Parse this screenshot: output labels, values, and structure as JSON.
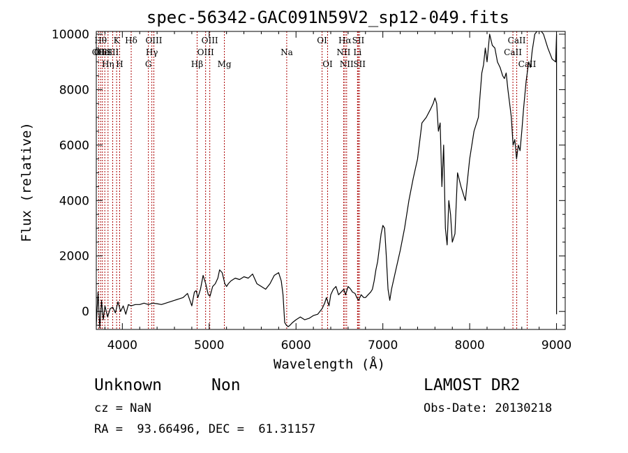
{
  "chart_data": {
    "type": "line",
    "title": "spec-56342-GAC091N59V2_sp12-049.fits",
    "xlabel": "Wavelength (Å)",
    "ylabel": "Flux (relative)",
    "xlim": [
      3700,
      9100
    ],
    "ylim": [
      -650,
      10100
    ],
    "x_ticks": [
      4000,
      5000,
      6000,
      7000,
      8000,
      9000
    ],
    "y_ticks": [
      0,
      2000,
      4000,
      6000,
      8000,
      10000
    ],
    "x_tick_labels": [
      "4000",
      "5000",
      "6000",
      "7000",
      "8000",
      "9000"
    ],
    "y_tick_labels": [
      "0",
      "2000",
      "4000",
      "6000",
      "8000",
      "10000"
    ],
    "grid": false,
    "series": [
      {
        "color": "#000000",
        "x": [
          3700,
          3720,
          3740,
          3760,
          3780,
          3800,
          3830,
          3860,
          3890,
          3920,
          3950,
          3980,
          4010,
          4040,
          4070,
          4100,
          4150,
          4200,
          4250,
          4300,
          4350,
          4400,
          4450,
          4500,
          4550,
          4600,
          4650,
          4700,
          4750,
          4800,
          4830,
          4850,
          4870,
          4900,
          4930,
          4960,
          4990,
          5010,
          5040,
          5070,
          5100,
          5120,
          5150,
          5180,
          5200,
          5220,
          5250,
          5300,
          5350,
          5400,
          5450,
          5500,
          5550,
          5600,
          5650,
          5700,
          5750,
          5800,
          5830,
          5850,
          5870,
          5890,
          5910,
          5930,
          5960,
          6000,
          6050,
          6100,
          6150,
          6200,
          6250,
          6300,
          6330,
          6350,
          6380,
          6400,
          6430,
          6460,
          6490,
          6520,
          6550,
          6570,
          6600,
          6630,
          6650,
          6680,
          6700,
          6720,
          6750,
          6780,
          6800,
          6830,
          6860,
          6880,
          6900,
          6920,
          6940,
          6960,
          6980,
          7000,
          7020,
          7040,
          7060,
          7080,
          7100,
          7150,
          7200,
          7250,
          7300,
          7350,
          7400,
          7450,
          7500,
          7550,
          7580,
          7600,
          7620,
          7640,
          7660,
          7680,
          7700,
          7720,
          7740,
          7760,
          7780,
          7800,
          7830,
          7860,
          7900,
          7950,
          8000,
          8050,
          8100,
          8120,
          8140,
          8160,
          8180,
          8200,
          8230,
          8260,
          8290,
          8320,
          8350,
          8380,
          8400,
          8420,
          8440,
          8460,
          8480,
          8500,
          8520,
          8540,
          8560,
          8580,
          8600,
          8620,
          8650,
          8680,
          8700,
          8720,
          8750,
          8800,
          8850,
          8900,
          8950,
          8990,
          9000,
          9000
        ],
        "y": [
          -500,
          700,
          -600,
          400,
          -300,
          200,
          -200,
          100,
          150,
          -50,
          350,
          0,
          200,
          -100,
          250,
          200,
          250,
          250,
          300,
          250,
          300,
          280,
          250,
          300,
          350,
          400,
          450,
          500,
          650,
          200,
          700,
          750,
          500,
          800,
          1300,
          1000,
          600,
          550,
          900,
          1000,
          1200,
          1500,
          1400,
          1000,
          900,
          1000,
          1100,
          1200,
          1150,
          1250,
          1200,
          1350,
          1000,
          900,
          800,
          1000,
          1300,
          1400,
          1100,
          600,
          -400,
          -500,
          -550,
          -500,
          -400,
          -300,
          -200,
          -300,
          -250,
          -150,
          -100,
          100,
          300,
          500,
          200,
          600,
          800,
          900,
          600,
          700,
          800,
          600,
          900,
          800,
          700,
          650,
          500,
          400,
          600,
          500,
          500,
          600,
          700,
          800,
          1100,
          1500,
          1800,
          2300,
          2800,
          3100,
          3000,
          2000,
          800,
          400,
          800,
          1500,
          2200,
          3000,
          4000,
          4800,
          5500,
          6800,
          7000,
          7300,
          7500,
          7700,
          7500,
          6500,
          6800,
          4500,
          6000,
          3000,
          2400,
          4000,
          3500,
          2500,
          2800,
          5000,
          4500,
          4000,
          5500,
          6500,
          7000,
          7800,
          8600,
          8900,
          9500,
          9000,
          10000,
          9600,
          9500,
          9000,
          8800,
          8500,
          8400,
          8600,
          8000,
          7500,
          7000,
          6000,
          6200,
          5500,
          6000,
          5800,
          6500,
          7300,
          8300,
          9000,
          8800,
          9400,
          10000,
          10200,
          10000,
          9500,
          9100,
          9000,
          10000,
          -100
        ]
      }
    ],
    "line_annotations": [
      {
        "x": 3727,
        "label": "OII",
        "row": 2
      },
      {
        "x": 3750,
        "label": "Hθ",
        "row": 1
      },
      {
        "x": 3770,
        "label": "OIII",
        "row": 2
      },
      {
        "x": 3798,
        "label": "HeI",
        "row": 2
      },
      {
        "x": 3835,
        "label": "Hη",
        "row": 3
      },
      {
        "x": 3889,
        "label": "SII",
        "row": 2
      },
      {
        "x": 3934,
        "label": "K",
        "row": 1
      },
      {
        "x": 3969,
        "label": "H",
        "row": 3
      },
      {
        "x": 4102,
        "label": "Hδ",
        "row": 1
      },
      {
        "x": 4300,
        "label": "G",
        "row": 3
      },
      {
        "x": 4340,
        "label": "Hγ",
        "row": 2
      },
      {
        "x": 4363,
        "label": "OIII",
        "row": 1
      },
      {
        "x": 4861,
        "label": "Hβ",
        "row": 3
      },
      {
        "x": 4959,
        "label": "OIII",
        "row": 2
      },
      {
        "x": 5007,
        "label": "OIII",
        "row": 1
      },
      {
        "x": 5175,
        "label": "Mg",
        "row": 3
      },
      {
        "x": 5893,
        "label": "Na",
        "row": 2
      },
      {
        "x": 6300,
        "label": "OI",
        "row": 1
      },
      {
        "x": 6364,
        "label": "OI",
        "row": 3
      },
      {
        "x": 6548,
        "label": "NII",
        "row": 2
      },
      {
        "x": 6563,
        "label": "Hα",
        "row": 1
      },
      {
        "x": 6583,
        "label": "NII",
        "row": 3
      },
      {
        "x": 6708,
        "label": "Li",
        "row": 2
      },
      {
        "x": 6717,
        "label": "SII",
        "row": 1
      },
      {
        "x": 6731,
        "label": "SII",
        "row": 3
      },
      {
        "x": 8498,
        "label": "CaII",
        "row": 2
      },
      {
        "x": 8542,
        "label": "CaII",
        "row": 1
      },
      {
        "x": 8662,
        "label": "CaII",
        "row": 3
      }
    ],
    "annotation_line_color": "#aa0000"
  },
  "footer": {
    "class": "Unknown",
    "subclass": "Non",
    "cz": "cz = NaN",
    "coords": "RA =  93.66496, DEC =  61.31157",
    "survey": "LAMOST DR2",
    "obs_date": "Obs-Date: 20130218"
  }
}
